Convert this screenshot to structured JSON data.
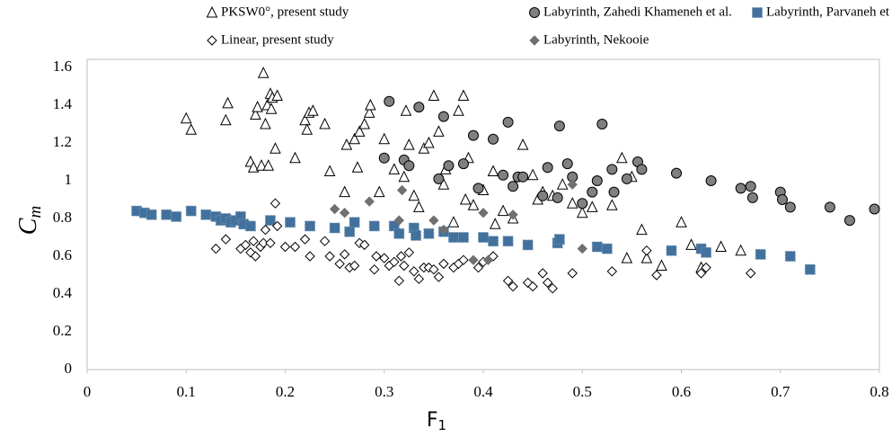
{
  "chart_data": {
    "type": "scatter",
    "x_label": "F",
    "x_label_sub": "1",
    "y_label": "C",
    "y_label_sub": "m",
    "xlim": [
      0,
      0.8
    ],
    "xticks": [
      0,
      0.1,
      0.2,
      0.3,
      0.4,
      0.5,
      0.6,
      0.7,
      0.8
    ],
    "ylim": [
      0,
      1.6
    ],
    "yticks": [
      0,
      0.2,
      0.4,
      0.6,
      0.8,
      1,
      1.2,
      1.4,
      1.6
    ],
    "grid": false,
    "legend": "top",
    "series": [
      {
        "name": "PKSW0°, present study",
        "marker": "triangle",
        "color": "#ffffff",
        "label_color": "#000000",
        "x": [
          0.1,
          0.105,
          0.14,
          0.142,
          0.165,
          0.168,
          0.17,
          0.172,
          0.176,
          0.178,
          0.18,
          0.182,
          0.183,
          0.185,
          0.186,
          0.187,
          0.19,
          0.192,
          0.21,
          0.22,
          0.222,
          0.224,
          0.228,
          0.24,
          0.245,
          0.26,
          0.262,
          0.27,
          0.273,
          0.275,
          0.28,
          0.285,
          0.286,
          0.295,
          0.3,
          0.31,
          0.32,
          0.322,
          0.325,
          0.33,
          0.335,
          0.34,
          0.345,
          0.35,
          0.355,
          0.36,
          0.362,
          0.37,
          0.375,
          0.38,
          0.382,
          0.385,
          0.39,
          0.4,
          0.41,
          0.412,
          0.42,
          0.43,
          0.44,
          0.45,
          0.455,
          0.46,
          0.47,
          0.48,
          0.49,
          0.5,
          0.51,
          0.53,
          0.54,
          0.545,
          0.55,
          0.56,
          0.565,
          0.58,
          0.6,
          0.61,
          0.62,
          0.64,
          0.66
        ],
        "values": [
          1.33,
          1.27,
          1.32,
          1.41,
          1.1,
          1.07,
          1.35,
          1.39,
          1.08,
          1.57,
          1.3,
          1.4,
          1.08,
          1.46,
          1.38,
          1.44,
          1.17,
          1.45,
          1.12,
          1.32,
          1.27,
          1.36,
          1.37,
          1.3,
          1.05,
          0.94,
          1.19,
          1.22,
          1.07,
          1.26,
          1.3,
          1.36,
          1.4,
          0.94,
          1.22,
          1.06,
          1.02,
          1.37,
          1.19,
          0.92,
          0.86,
          1.17,
          1.2,
          1.45,
          1.26,
          0.98,
          1.06,
          0.78,
          1.37,
          1.45,
          0.9,
          1.12,
          0.87,
          0.95,
          1.05,
          0.77,
          0.84,
          0.8,
          1.19,
          1.03,
          0.9,
          0.94,
          0.92,
          0.98,
          0.88,
          0.83,
          0.86,
          0.87,
          1.12,
          0.59,
          1.02,
          0.74,
          0.59,
          0.55,
          0.78,
          0.66,
          0.54,
          0.65,
          0.63
        ]
      },
      {
        "name": "Labyrinth, Zahedi Khameneh et al.",
        "marker": "circle",
        "color": "#808080",
        "label_color": "#f2e600",
        "x": [
          0.3,
          0.305,
          0.32,
          0.325,
          0.335,
          0.355,
          0.36,
          0.365,
          0.38,
          0.39,
          0.395,
          0.41,
          0.42,
          0.425,
          0.43,
          0.435,
          0.44,
          0.46,
          0.465,
          0.475,
          0.477,
          0.485,
          0.49,
          0.5,
          0.51,
          0.515,
          0.52,
          0.53,
          0.532,
          0.545,
          0.556,
          0.56,
          0.595,
          0.63,
          0.66,
          0.67,
          0.672,
          0.7,
          0.702,
          0.71,
          0.75,
          0.77,
          0.795
        ],
        "values": [
          1.12,
          1.42,
          1.11,
          1.08,
          1.39,
          1.01,
          1.34,
          1.08,
          1.09,
          1.24,
          0.96,
          1.22,
          1.03,
          1.31,
          0.97,
          1.02,
          1.02,
          0.92,
          1.07,
          0.91,
          1.29,
          1.09,
          1.02,
          0.88,
          0.94,
          1.0,
          1.3,
          1.06,
          0.94,
          1.01,
          1.1,
          1.06,
          1.04,
          1.0,
          0.96,
          0.97,
          0.91,
          0.94,
          0.9,
          0.86,
          0.86,
          0.79,
          0.85
        ]
      },
      {
        "name": "Labyrinth, Parvaneh et al.",
        "marker": "square",
        "color": "#41719c",
        "label_color": "#000000",
        "x": [
          0.05,
          0.058,
          0.065,
          0.08,
          0.09,
          0.105,
          0.12,
          0.13,
          0.135,
          0.14,
          0.145,
          0.15,
          0.155,
          0.158,
          0.165,
          0.185,
          0.205,
          0.225,
          0.25,
          0.265,
          0.27,
          0.29,
          0.31,
          0.315,
          0.33,
          0.332,
          0.345,
          0.36,
          0.37,
          0.38,
          0.4,
          0.41,
          0.425,
          0.445,
          0.475,
          0.477,
          0.515,
          0.525,
          0.59,
          0.62,
          0.625,
          0.68,
          0.71,
          0.73
        ],
        "values": [
          0.84,
          0.83,
          0.82,
          0.82,
          0.81,
          0.84,
          0.82,
          0.81,
          0.79,
          0.8,
          0.78,
          0.79,
          0.81,
          0.77,
          0.76,
          0.79,
          0.78,
          0.76,
          0.75,
          0.73,
          0.78,
          0.76,
          0.76,
          0.72,
          0.75,
          0.71,
          0.72,
          0.73,
          0.7,
          0.7,
          0.7,
          0.68,
          0.68,
          0.66,
          0.67,
          0.69,
          0.65,
          0.64,
          0.63,
          0.64,
          0.62,
          0.61,
          0.6,
          0.53
        ]
      },
      {
        "name": "Linear, present study",
        "marker": "diamond",
        "color": "#ffffff",
        "label_color": "#000000",
        "x": [
          0.13,
          0.14,
          0.155,
          0.16,
          0.165,
          0.168,
          0.17,
          0.175,
          0.178,
          0.18,
          0.185,
          0.19,
          0.192,
          0.2,
          0.21,
          0.22,
          0.225,
          0.24,
          0.245,
          0.255,
          0.26,
          0.265,
          0.27,
          0.275,
          0.28,
          0.29,
          0.292,
          0.3,
          0.305,
          0.31,
          0.315,
          0.317,
          0.32,
          0.325,
          0.33,
          0.335,
          0.34,
          0.345,
          0.35,
          0.355,
          0.36,
          0.37,
          0.375,
          0.38,
          0.395,
          0.4,
          0.41,
          0.425,
          0.43,
          0.445,
          0.45,
          0.46,
          0.465,
          0.47,
          0.49,
          0.53,
          0.565,
          0.575,
          0.62,
          0.625,
          0.67
        ],
        "values": [
          0.64,
          0.69,
          0.64,
          0.66,
          0.62,
          0.68,
          0.6,
          0.65,
          0.67,
          0.74,
          0.67,
          0.88,
          0.76,
          0.65,
          0.65,
          0.69,
          0.6,
          0.68,
          0.6,
          0.56,
          0.61,
          0.54,
          0.55,
          0.67,
          0.66,
          0.53,
          0.6,
          0.59,
          0.55,
          0.57,
          0.47,
          0.6,
          0.55,
          0.62,
          0.52,
          0.48,
          0.54,
          0.54,
          0.53,
          0.49,
          0.56,
          0.54,
          0.56,
          0.58,
          0.54,
          0.57,
          0.6,
          0.47,
          0.44,
          0.46,
          0.44,
          0.51,
          0.46,
          0.43,
          0.51,
          0.52,
          0.63,
          0.5,
          0.51,
          0.54,
          0.51
        ]
      },
      {
        "name": "Labyrinth, Nekooie",
        "marker": "diamond",
        "color": "#707070",
        "label_color": "#000000",
        "x": [
          0.25,
          0.26,
          0.285,
          0.315,
          0.318,
          0.35,
          0.36,
          0.39,
          0.4,
          0.405,
          0.43,
          0.49,
          0.5
        ],
        "values": [
          0.85,
          0.83,
          0.89,
          0.79,
          0.95,
          0.79,
          0.74,
          0.58,
          0.83,
          0.58,
          0.82,
          0.98,
          0.64
        ]
      }
    ]
  }
}
